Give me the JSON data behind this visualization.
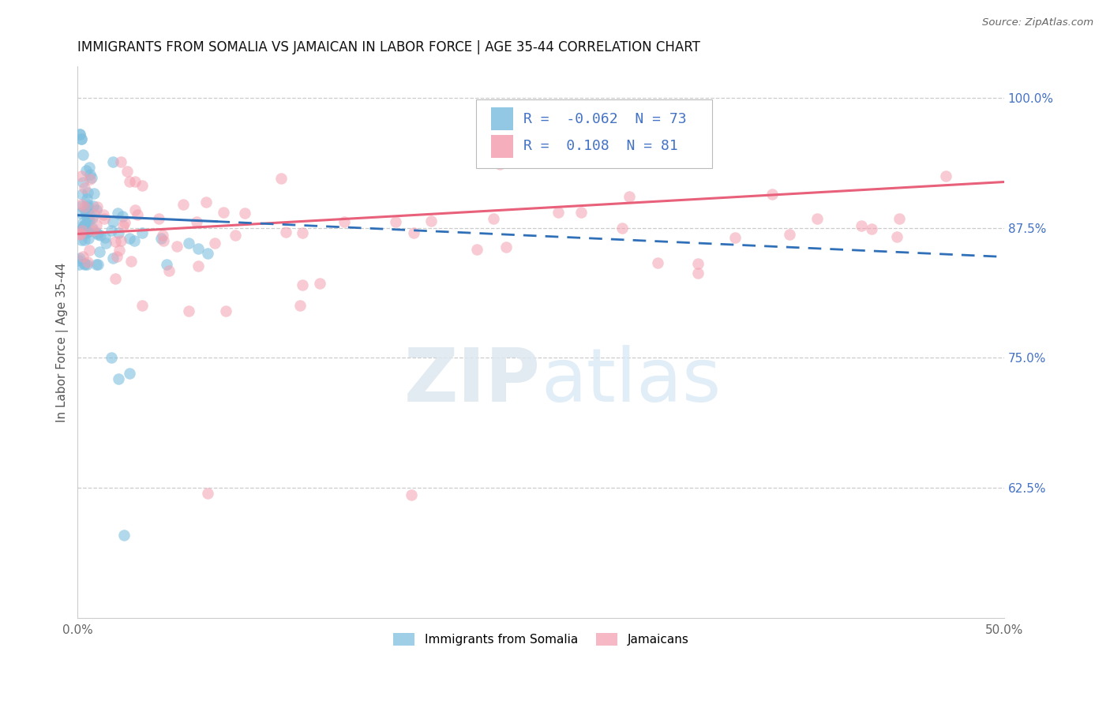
{
  "title": "IMMIGRANTS FROM SOMALIA VS JAMAICAN IN LABOR FORCE | AGE 35-44 CORRELATION CHART",
  "source": "Source: ZipAtlas.com",
  "ylabel": "In Labor Force | Age 35-44",
  "xlim": [
    0.0,
    0.5
  ],
  "ylim": [
    0.5,
    1.03
  ],
  "yticks_right": [
    1.0,
    0.875,
    0.75,
    0.625
  ],
  "ytick_right_labels": [
    "100.0%",
    "87.5%",
    "75.0%",
    "62.5%"
  ],
  "somalia_R": -0.062,
  "somalia_N": 73,
  "jamaican_R": 0.108,
  "jamaican_N": 81,
  "somalia_color": "#7fbfdf",
  "jamaican_color": "#f4a0b0",
  "somalia_line_color": "#3070b8",
  "jamaican_line_color": "#e8607a",
  "legend_label_somalia": "Immigrants from Somalia",
  "legend_label_jamaican": "Jamaicans",
  "background_color": "#ffffff",
  "grid_color": "#cccccc",
  "title_fontsize": 12,
  "axis_fontsize": 11,
  "legend_fontsize": 13
}
